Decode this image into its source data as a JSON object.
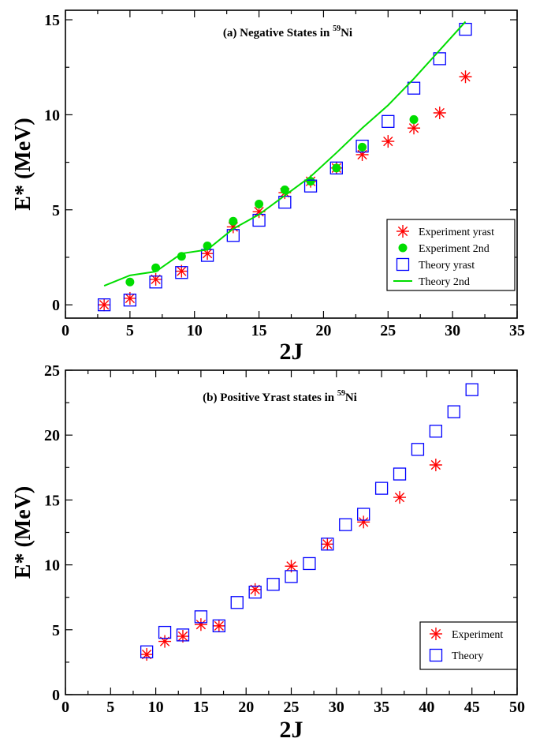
{
  "colors": {
    "experiment": "#ff0000",
    "experiment_2nd": "#00dd00",
    "theory": "#0000ff",
    "theory_2nd": "#00dd00",
    "axes": "#000000"
  },
  "chart_data": [
    {
      "type": "scatter",
      "title": "(a) Negative States in ⁵⁹Ni",
      "title_prefix": "(a) Negative States in ",
      "title_superscript": "59",
      "title_suffix": "Ni",
      "xlabel": "2J",
      "ylabel": "E* (MeV)",
      "xlim": [
        0,
        35
      ],
      "ylim": [
        -0.7,
        15.5
      ],
      "xticks": [
        0,
        5,
        10,
        15,
        20,
        25,
        30,
        35
      ],
      "yticks": [
        0,
        5,
        10,
        15
      ],
      "grid": false,
      "legend_position": "bottom-right",
      "series": [
        {
          "name": "Experiment yrast",
          "marker": "asterisk",
          "color": "#ff0000",
          "x": [
            3,
            5,
            7,
            9,
            11,
            13,
            15,
            17,
            19,
            21,
            23,
            25,
            27,
            29,
            31
          ],
          "y": [
            0.0,
            0.34,
            1.34,
            1.77,
            2.7,
            4.1,
            4.9,
            5.9,
            6.5,
            7.2,
            7.9,
            8.6,
            9.3,
            10.1,
            12.0
          ]
        },
        {
          "name": "Experiment 2nd",
          "marker": "filled-circle",
          "color": "#00dd00",
          "x": [
            5,
            7,
            9,
            11,
            13,
            15,
            17,
            19,
            21,
            23,
            27
          ],
          "y": [
            1.2,
            1.95,
            2.55,
            3.1,
            4.4,
            5.3,
            6.05,
            6.5,
            7.2,
            8.3,
            9.75
          ]
        },
        {
          "name": "Theory yrast",
          "marker": "open-square",
          "color": "#0000ff",
          "x": [
            3,
            5,
            7,
            9,
            11,
            13,
            15,
            17,
            19,
            21,
            23,
            25,
            27,
            29,
            31
          ],
          "y": [
            0.0,
            0.25,
            1.2,
            1.7,
            2.6,
            3.65,
            4.45,
            5.4,
            6.25,
            7.2,
            8.35,
            9.65,
            11.4,
            12.95,
            14.5
          ]
        },
        {
          "name": "Theory 2nd",
          "marker": "line",
          "color": "#00dd00",
          "x": [
            3,
            5,
            7,
            9,
            11,
            13,
            15,
            17,
            19,
            21,
            23,
            25,
            27,
            29,
            31
          ],
          "y": [
            1.0,
            1.55,
            1.75,
            2.7,
            2.9,
            4.0,
            4.75,
            5.75,
            6.75,
            8.0,
            9.3,
            10.5,
            11.9,
            13.4,
            14.9
          ]
        }
      ]
    },
    {
      "type": "scatter",
      "title": "(b) Positive Yrast states in ⁵⁹Ni",
      "title_prefix": "(b) Positive Yrast states in ",
      "title_superscript": "59",
      "title_suffix": "Ni",
      "xlabel": "2J",
      "ylabel": "E* (MeV)",
      "xlim": [
        0,
        50
      ],
      "ylim": [
        0,
        25
      ],
      "xticks": [
        0,
        5,
        10,
        15,
        20,
        25,
        30,
        35,
        40,
        45,
        50
      ],
      "yticks": [
        0,
        5,
        10,
        15,
        20,
        25
      ],
      "grid": false,
      "legend_position": "bottom-right",
      "series": [
        {
          "name": "Experiment",
          "marker": "asterisk",
          "color": "#ff0000",
          "x": [
            9,
            11,
            13,
            15,
            17,
            21,
            25,
            29,
            33,
            37,
            41
          ],
          "y": [
            3.1,
            4.1,
            4.5,
            5.4,
            5.3,
            8.1,
            9.9,
            11.6,
            13.3,
            15.2,
            17.7
          ]
        },
        {
          "name": "Theory",
          "marker": "open-square",
          "color": "#0000ff",
          "x": [
            9,
            11,
            13,
            15,
            17,
            19,
            21,
            23,
            25,
            27,
            29,
            31,
            33,
            35,
            37,
            39,
            41,
            43,
            45
          ],
          "y": [
            3.3,
            4.8,
            4.6,
            6.0,
            5.3,
            7.1,
            7.9,
            8.5,
            9.1,
            10.1,
            11.6,
            13.1,
            13.9,
            15.9,
            17.0,
            18.9,
            20.3,
            21.8,
            23.5
          ]
        }
      ]
    }
  ]
}
